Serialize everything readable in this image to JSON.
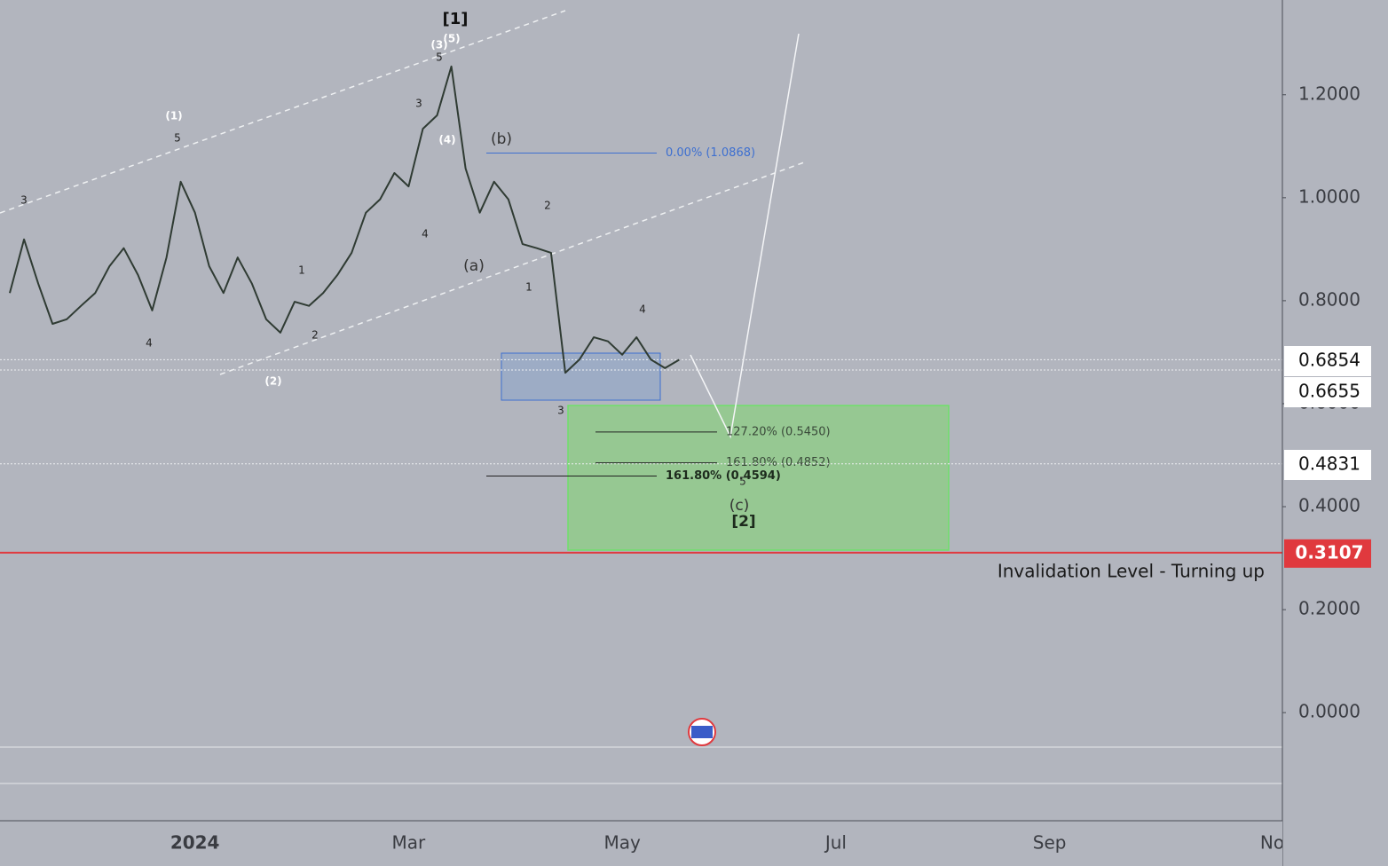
{
  "chart_data": {
    "type": "line",
    "categories": [
      null,
      null,
      null,
      null,
      null,
      null,
      null,
      null,
      null,
      null,
      null,
      null,
      null,
      "2024",
      null,
      null,
      null,
      null,
      null,
      null,
      null,
      null,
      null,
      null,
      null,
      null,
      null,
      null,
      "Mar",
      null,
      null,
      null,
      null,
      null,
      null,
      null,
      null,
      null,
      null,
      null,
      null,
      null,
      null,
      "May",
      null,
      null,
      null,
      null,
      null,
      null,
      null,
      null,
      null,
      null,
      null,
      null,
      null,
      null,
      "Jul",
      null,
      null,
      null,
      null,
      null,
      null,
      null,
      null,
      null,
      null,
      null,
      null,
      null,
      null,
      "Sep",
      null,
      null,
      null,
      null,
      null,
      null,
      null,
      null,
      null,
      null,
      null,
      null,
      null,
      null,
      null,
      "Nov"
    ],
    "series": [
      {
        "name": "Price",
        "color": "#2f3b33",
        "values": [
          0.815,
          0.919,
          0.833,
          0.755,
          0.764,
          0.79,
          0.815,
          0.867,
          0.902,
          0.85,
          0.781,
          0.884,
          1.031,
          0.971,
          0.867,
          0.815,
          0.884,
          0.833,
          0.764,
          0.738,
          0.798,
          0.79,
          0.815,
          0.85,
          0.893,
          0.971,
          0.997,
          1.048,
          1.022,
          1.134,
          1.16,
          1.255,
          1.057,
          0.971,
          1.031,
          0.997,
          0.91,
          0.902,
          0.893,
          0.66,
          0.686,
          0.729,
          0.721,
          0.695,
          0.729,
          0.686,
          0.669,
          0.6854,
          null,
          null,
          null,
          null,
          null,
          null,
          null,
          null,
          null,
          null,
          null,
          null,
          null,
          null,
          null,
          null,
          null,
          null,
          null,
          null,
          null,
          null,
          null,
          null,
          null,
          null,
          null,
          null,
          null,
          null,
          null,
          null,
          null,
          null,
          null,
          null,
          null,
          null,
          null,
          null,
          null,
          null
        ]
      }
    ],
    "ylim": [
      -0.21,
      1.384
    ],
    "yticks": [
      {
        "value": 0,
        "label": "0.0000"
      },
      {
        "value": 0.2,
        "label": "0.2000"
      },
      {
        "value": 0.4,
        "label": "0.4000"
      },
      {
        "value": 0.6,
        "label": "0.6000"
      },
      {
        "value": 0.8,
        "label": "0.8000"
      },
      {
        "value": 1.0,
        "label": "1.0000"
      },
      {
        "value": 1.2,
        "label": "1.2000"
      }
    ],
    "grid": false,
    "fib_levels": [
      {
        "value": 1.0868,
        "label": "0.00% (1.0868)"
      },
      {
        "value": 0.545,
        "label": "127.20% (0.5450)"
      },
      {
        "value": 0.4852,
        "label": "161.80% (0.4852)"
      },
      {
        "value": 0.4594,
        "label": "161.80% (0.4594)"
      }
    ],
    "price_lines": [
      {
        "value": 0.6854,
        "label": "0.6854"
      },
      {
        "value": 0.6655,
        "label": "0.6655"
      },
      {
        "value": 0.4831,
        "label": "0.4831"
      }
    ],
    "invalidation": {
      "value": 0.3107,
      "label": "0.3107",
      "text": "Invalidation Level - Turning up",
      "color": "#e0393e"
    },
    "annotations": [
      "[1]",
      "(3)",
      "(5)",
      "5",
      "3",
      "(4)",
      "4",
      "(b)",
      "(a)",
      "2",
      "1",
      "3",
      "4",
      "(1)",
      "5",
      "3",
      "4",
      "1",
      "2",
      "(2)",
      "5",
      "(c)",
      "[2]"
    ]
  }
}
